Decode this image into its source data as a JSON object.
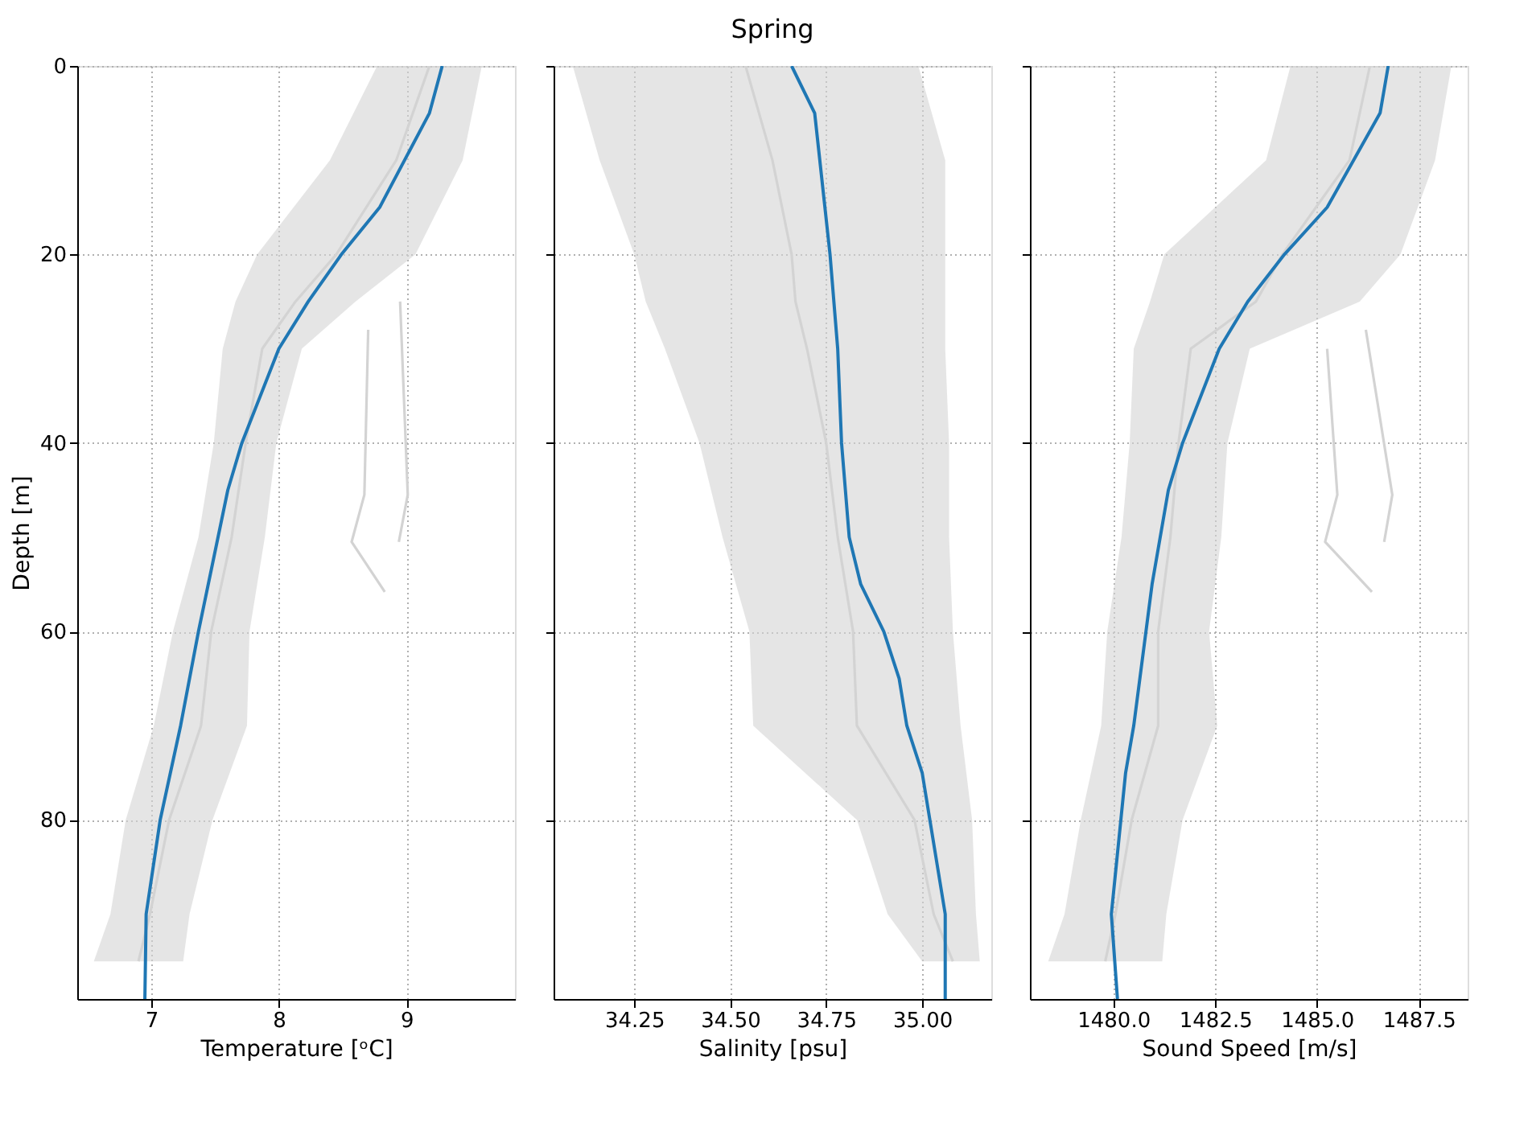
{
  "chart_data": [
    {
      "type": "line",
      "orientation": "horizontal",
      "xlabel": "Temperature [ᵒC]",
      "ylabel": "Depth [m]",
      "xlim": [
        6.42,
        9.85
      ],
      "xticks": [
        7,
        8,
        9
      ],
      "ylim": [
        99,
        0
      ],
      "yticks": [
        0,
        20,
        40,
        60,
        80
      ],
      "grid": true,
      "series": [
        {
          "color": "#d3d3d3",
          "x": [
            0,
            10,
            20,
            25,
            30,
            40,
            50,
            60,
            70,
            80,
            90,
            95
          ],
          "values": [
            9.18,
            8.92,
            8.45,
            8.13,
            7.87,
            7.74,
            7.63,
            7.47,
            7.39,
            7.14,
            6.99,
            6.9
          ],
          "lower": [
            8.77,
            8.4,
            7.83,
            7.66,
            7.56,
            7.49,
            7.37,
            7.17,
            7.02,
            6.8,
            6.68,
            6.55
          ],
          "upper": [
            9.59,
            9.44,
            9.07,
            8.6,
            8.18,
            7.98,
            7.89,
            7.77,
            7.75,
            7.48,
            7.3,
            7.25
          ]
        },
        {
          "color": "#d3d3d3",
          "x": [
            25,
            45.5,
            50.5
          ],
          "values": [
            8.95,
            9.01,
            8.94
          ]
        },
        {
          "color": "#d3d3d3",
          "x": [
            28,
            45.5,
            50.5,
            55.8
          ],
          "values": [
            8.7,
            8.67,
            8.57,
            8.83
          ]
        },
        {
          "color": "#1f77b4",
          "x": [
            0,
            5,
            15,
            20,
            25,
            30,
            40,
            45,
            60,
            70,
            75,
            80,
            90,
            99
          ],
          "values": [
            9.28,
            9.18,
            8.79,
            8.49,
            8.23,
            8.0,
            7.71,
            7.6,
            7.37,
            7.23,
            7.15,
            7.07,
            6.96,
            6.95
          ]
        }
      ]
    },
    {
      "type": "line",
      "orientation": "horizontal",
      "title": "Spring",
      "xlabel": "Salinity [psu]",
      "xlim": [
        34.04,
        35.18
      ],
      "xticks": [
        34.25,
        {
          "value": 34.5,
          "label": "34.50"
        },
        34.75,
        {
          "value": 35.0,
          "label": "35.00"
        }
      ],
      "ylim": [
        99,
        0
      ],
      "yticks": [
        0,
        20,
        40,
        60,
        80
      ],
      "tick_labels": "x",
      "grid": true,
      "series": [
        {
          "color": "#d3d3d3",
          "x": [
            0,
            10,
            20,
            25,
            30,
            40,
            50,
            60,
            70,
            80,
            90,
            95
          ],
          "values": [
            34.54,
            34.61,
            34.66,
            34.67,
            34.7,
            34.75,
            34.78,
            34.82,
            34.83,
            34.98,
            35.03,
            35.08
          ],
          "lower": [
            34.09,
            34.16,
            34.25,
            34.28,
            34.33,
            34.42,
            34.48,
            34.55,
            34.56,
            34.83,
            34.91,
            35.0
          ],
          "upper": [
            34.99,
            35.06,
            35.06,
            35.06,
            35.06,
            35.07,
            35.07,
            35.08,
            35.1,
            35.13,
            35.14,
            35.15
          ]
        },
        {
          "color": "#1f77b4",
          "x": [
            0,
            5,
            20,
            30,
            40,
            50,
            55,
            60,
            65,
            70,
            75,
            90,
            99
          ],
          "values": [
            34.66,
            34.72,
            34.76,
            34.78,
            34.79,
            34.81,
            34.84,
            34.9,
            34.94,
            34.96,
            35.0,
            35.06,
            35.06
          ]
        }
      ]
    },
    {
      "type": "line",
      "orientation": "horizontal",
      "xlabel": "Sound Speed [m/s]",
      "xlim": [
        1477.95,
        1488.7
      ],
      "xticks": [
        {
          "value": 1480,
          "label": "1480.0"
        },
        1482.5,
        {
          "value": 1485,
          "label": "1485.0"
        },
        1487.5
      ],
      "ylim": [
        99,
        0
      ],
      "yticks": [
        0,
        20,
        40,
        60,
        80
      ],
      "tick_labels": "x",
      "grid": true,
      "series": [
        {
          "color": "#d3d3d3",
          "x": [
            0,
            10,
            20,
            25,
            30,
            40,
            50,
            60,
            70,
            80,
            90,
            95
          ],
          "values": [
            1486.3,
            1485.8,
            1484.15,
            1483.5,
            1481.9,
            1481.6,
            1481.4,
            1481.1,
            1481.1,
            1480.45,
            1480.05,
            1479.8
          ],
          "lower": [
            1484.35,
            1483.75,
            1481.25,
            1480.9,
            1480.5,
            1480.4,
            1480.2,
            1479.85,
            1479.7,
            1479.2,
            1478.8,
            1478.4
          ],
          "upper": [
            1488.3,
            1487.9,
            1487.05,
            1486.05,
            1483.35,
            1482.8,
            1482.65,
            1482.35,
            1482.55,
            1481.7,
            1481.3,
            1481.2
          ]
        },
        {
          "color": "#d3d3d3",
          "x": [
            28,
            45.5,
            50.5
          ],
          "values": [
            1486.2,
            1486.85,
            1486.65
          ]
        },
        {
          "color": "#d3d3d3",
          "x": [
            30,
            45.5,
            50.5,
            55.8
          ],
          "values": [
            1485.25,
            1485.5,
            1485.2,
            1486.35
          ]
        },
        {
          "color": "#1f77b4",
          "x": [
            0,
            5,
            15,
            20,
            25,
            30,
            40,
            45,
            55,
            70,
            75,
            90,
            99
          ],
          "values": [
            1486.75,
            1486.55,
            1485.25,
            1484.2,
            1483.3,
            1482.6,
            1481.7,
            1481.35,
            1480.95,
            1480.5,
            1480.3,
            1479.95,
            1480.1
          ]
        }
      ]
    }
  ]
}
